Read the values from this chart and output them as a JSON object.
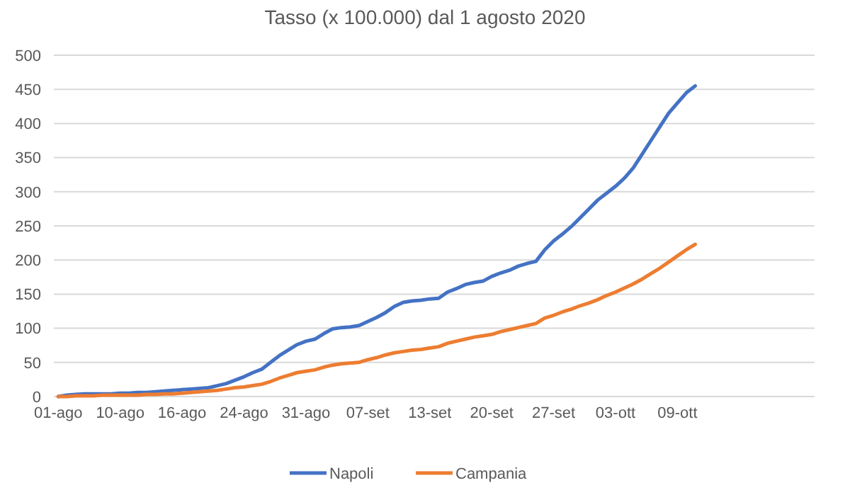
{
  "chart_data": {
    "type": "line",
    "title": "Tasso (x 100.000) dal 1 agosto 2020",
    "categories": [
      "01-ago",
      null,
      null,
      null,
      null,
      null,
      null,
      "10-ago",
      null,
      null,
      null,
      null,
      null,
      null,
      "16-ago",
      null,
      null,
      null,
      null,
      null,
      null,
      "24-ago",
      null,
      null,
      null,
      null,
      null,
      null,
      "31-ago",
      null,
      null,
      null,
      null,
      null,
      null,
      "07-set",
      null,
      null,
      null,
      null,
      null,
      null,
      "13-set",
      null,
      null,
      null,
      null,
      null,
      null,
      "20-set",
      null,
      null,
      null,
      null,
      null,
      null,
      "27-set",
      null,
      null,
      null,
      null,
      null,
      null,
      "03-ott",
      null,
      null,
      null,
      null,
      null,
      null,
      "09-ott",
      null,
      null,
      null,
      null,
      null,
      null,
      null,
      null,
      null,
      null,
      null,
      null,
      null,
      null,
      null
    ],
    "series": [
      {
        "name": "Napoli",
        "color": "#4472c4",
        "values": [
          0,
          2,
          3,
          4,
          4,
          4,
          4,
          5,
          5,
          6,
          6,
          7,
          8,
          9,
          10,
          11,
          12,
          13,
          16,
          19,
          24,
          29,
          35,
          40,
          50,
          60,
          68,
          76,
          81,
          84,
          92,
          99,
          101,
          102,
          104,
          110,
          116,
          123,
          132,
          138,
          140,
          141,
          143,
          144,
          153,
          158,
          164,
          167,
          169,
          176,
          181,
          185,
          191,
          195,
          198,
          215,
          228,
          238,
          249,
          262,
          275,
          288,
          298,
          308,
          320,
          335,
          355,
          375,
          395,
          415,
          430,
          445,
          455,
          null,
          null,
          null,
          null,
          null,
          null,
          null,
          null,
          null,
          null,
          null,
          null,
          null
        ]
      },
      {
        "name": "Campania",
        "color": "#ed7d31",
        "values": [
          0,
          0,
          1,
          1,
          1,
          2,
          2,
          2,
          2,
          2,
          3,
          3,
          4,
          4,
          5,
          6,
          7,
          8,
          9,
          11,
          13,
          14,
          16,
          18,
          22,
          27,
          31,
          35,
          37,
          39,
          43,
          46,
          48,
          49,
          50,
          54,
          57,
          61,
          64,
          66,
          68,
          69,
          71,
          73,
          78,
          81,
          84,
          87,
          89,
          91,
          95,
          98,
          101,
          104,
          107,
          115,
          119,
          124,
          128,
          133,
          137,
          142,
          148,
          153,
          159,
          165,
          172,
          180,
          188,
          197,
          206,
          215,
          223,
          null,
          null,
          null,
          null,
          null,
          null,
          null,
          null,
          null,
          null,
          null,
          null,
          null
        ]
      }
    ],
    "ylim": [
      0,
      500
    ],
    "yticks": [
      0,
      50,
      100,
      150,
      200,
      250,
      300,
      350,
      400,
      450,
      500
    ],
    "grid": "y",
    "legend": "bottom"
  }
}
